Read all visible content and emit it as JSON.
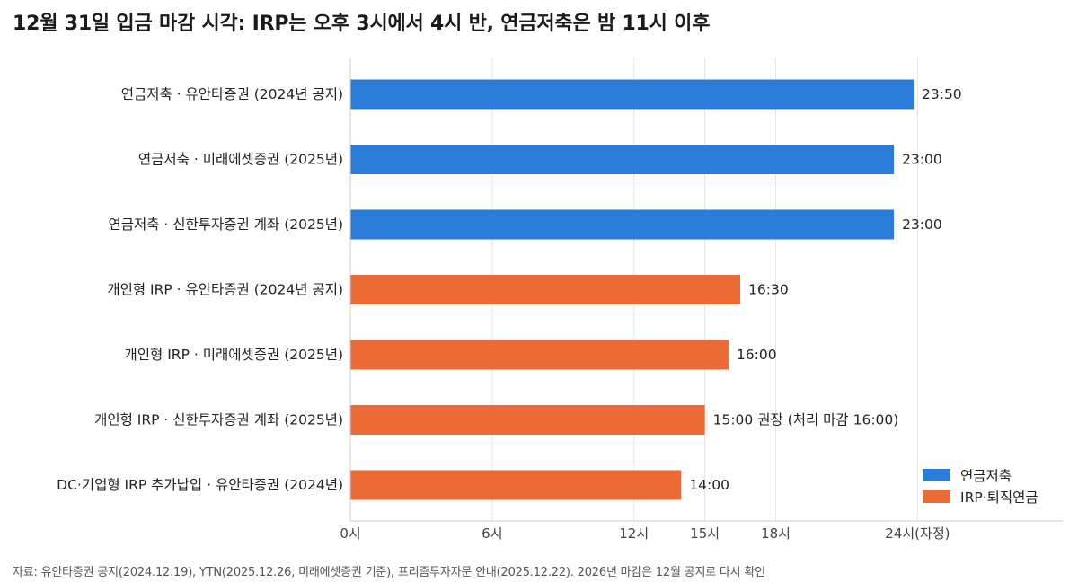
{
  "title": "12월 31일 입금 마감 시각: IRP는 오후 3시에서 4시 반, 연금저축은 밤 11시 이후",
  "footnote": "자료: 유안타증권 공지(2024.12.19), YTN(2025.12.26, 미래에셋증권 기준), 프리즘투자자문 안내(2025.12.22). 2026년 마감은 12월 공지로 다시 확인",
  "colors": {
    "pension_savings": "#2b7bd9",
    "irp": "#eb6a35",
    "grid": "#e6e6e6",
    "axis": "#cccccc"
  },
  "chart_data": {
    "type": "bar",
    "orientation": "horizontal",
    "categories": [
      "연금저축 · 유안타증권 (2024년 공지)",
      "연금저축 · 미래에셋증권 (2025년)",
      "연금저축 · 신한투자증권 계좌 (2025년)",
      "개인형 IRP · 유안타증권 (2024년 공지)",
      "개인형 IRP · 미래에셋증권 (2025년)",
      "개인형 IRP · 신한투자증권 계좌 (2025년)",
      "DC·기업형 IRP 추가납입 · 유안타증권 (2024년)"
    ],
    "values": [
      23.8333,
      23.0,
      23.0,
      16.5,
      16.0,
      15.0,
      14.0
    ],
    "series_of_bar": [
      0,
      0,
      0,
      1,
      1,
      1,
      1
    ],
    "data_labels": [
      "23:50",
      "23:00",
      "23:00",
      "16:30",
      "16:00",
      "15:00 권장 (처리 마감 16:00)",
      "14:00"
    ],
    "series": [
      {
        "name": "연금저축",
        "color": "#2b7bd9"
      },
      {
        "name": "IRP·퇴직연금",
        "color": "#eb6a35"
      }
    ],
    "xticks": [
      0,
      6,
      12,
      15,
      18,
      24
    ],
    "xtick_labels": [
      "0시",
      "6시",
      "12시",
      "15시",
      "18시",
      "24시(자정)"
    ],
    "xlim": [
      0,
      30
    ],
    "xlabel": "",
    "ylabel": "",
    "grid": true,
    "legend_position": "bottom-right"
  }
}
